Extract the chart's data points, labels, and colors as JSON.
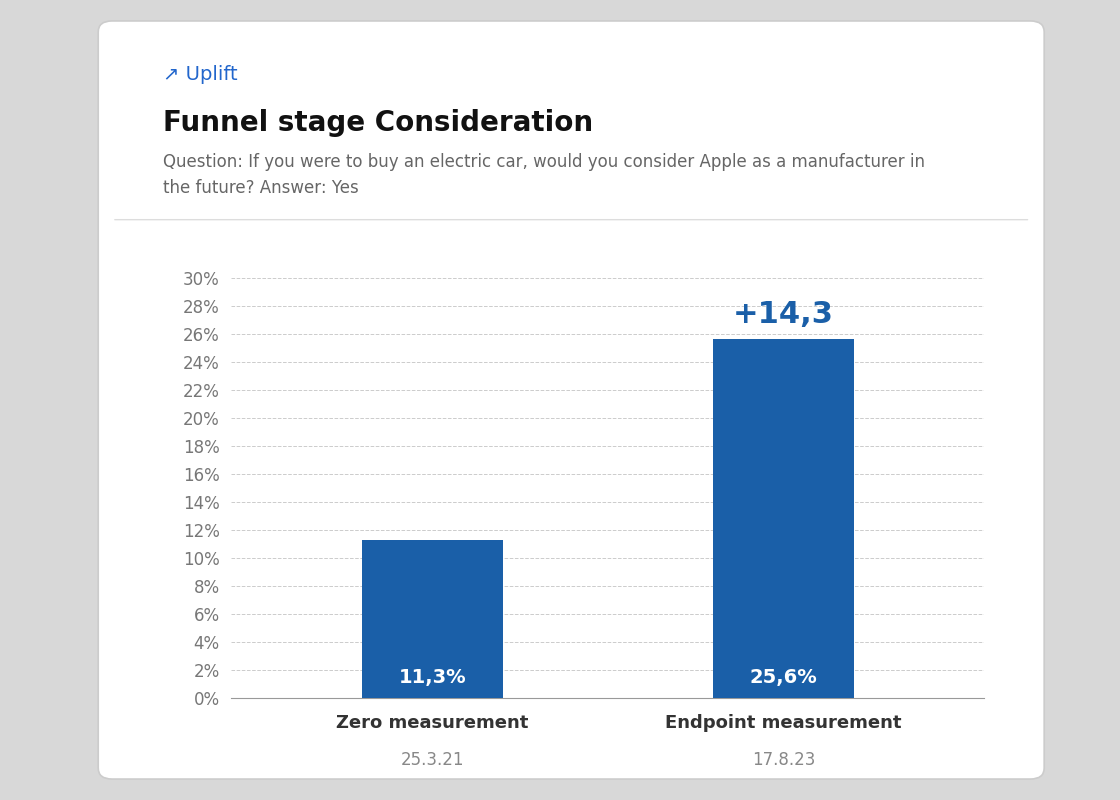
{
  "title": "Funnel stage Consideration",
  "uplift_label": "Uplift",
  "question_line1": "Question: If you were to buy an electric car, would you consider Apple as a manufacturer in",
  "question_line2": "the future? Answer: Yes",
  "categories": [
    "Zero measurement",
    "Endpoint measurement"
  ],
  "dates": [
    "25.3.21",
    "17.8.23"
  ],
  "values": [
    11.3,
    25.6
  ],
  "bar_color": "#1a5fa8",
  "uplift_value": "+14,3",
  "uplift_color": "#1a5fa8",
  "bar_labels": [
    "11,3%",
    "25,6%"
  ],
  "bar_label_color": "#ffffff",
  "yticks": [
    0,
    2,
    4,
    6,
    8,
    10,
    12,
    14,
    16,
    18,
    20,
    22,
    24,
    26,
    28,
    30
  ],
  "ylim": [
    0,
    31.5
  ],
  "grid_color": "#cccccc",
  "background_color": "#ffffff",
  "outer_background": "#d8d8d8",
  "title_fontsize": 20,
  "question_fontsize": 12,
  "tick_fontsize": 12,
  "xlabel_fontsize": 13,
  "date_fontsize": 12,
  "bar_label_fontsize": 14,
  "uplift_fontsize": 22,
  "uplift_label_fontsize": 14
}
